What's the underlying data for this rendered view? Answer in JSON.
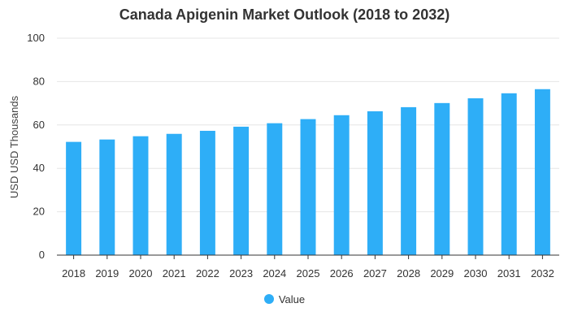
{
  "chart_data": {
    "type": "bar",
    "title": "Canada Apigenin Market Outlook (2018 to 2032)",
    "xlabel": "",
    "ylabel": "USD USD Thousands",
    "categories": [
      "2018",
      "2019",
      "2020",
      "2021",
      "2022",
      "2023",
      "2024",
      "2025",
      "2026",
      "2027",
      "2028",
      "2029",
      "2030",
      "2031",
      "2032"
    ],
    "series": [
      {
        "name": "Value",
        "values": [
          52.2,
          53.3,
          54.8,
          55.9,
          57.3,
          59.2,
          60.8,
          62.7,
          64.5,
          66.3,
          68.2,
          70.1,
          72.3,
          74.6,
          76.5
        ]
      }
    ],
    "ylim": [
      0,
      100
    ],
    "yticks": [
      0,
      20,
      40,
      60,
      80,
      100
    ],
    "grid": true,
    "legend_position": "bottom",
    "bar_color": "#2EAEF7",
    "grid_color": "#E6E6E6",
    "axis_color": "#333333"
  }
}
